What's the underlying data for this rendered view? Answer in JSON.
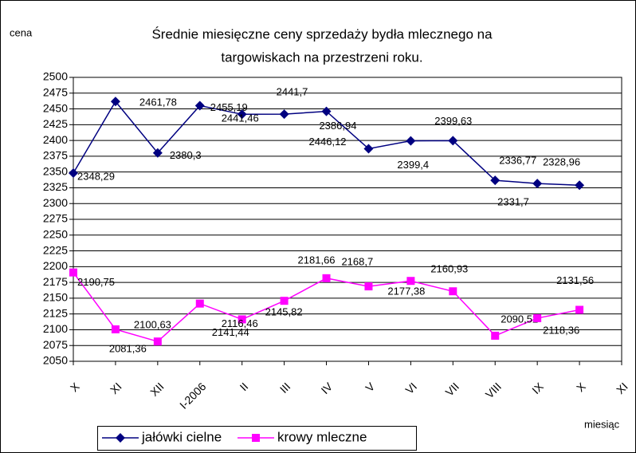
{
  "chart_data": {
    "type": "line",
    "title": [
      "Średnie miesięczne ceny sprzedaży bydła mlecznego na",
      "targowiskach na przestrzeni roku."
    ],
    "y_label": "cena",
    "x_label": "miesiąc",
    "categories": [
      "X",
      "XI",
      "XII",
      "I-2006",
      "II",
      "III",
      "IV",
      "V",
      "VI",
      "VII",
      "VIII",
      "IX",
      "X",
      "XI"
    ],
    "series": [
      {
        "name": "jałówki cielne",
        "color": "#000080",
        "marker": "diamond",
        "values": [
          2348.29,
          2461.78,
          2380.3,
          2455.19,
          2441.46,
          2441.7,
          2446.12,
          2386.94,
          2399.4,
          2399.63,
          2336.77,
          2331.7,
          2328.96,
          null
        ],
        "value_labels": [
          "2348,29",
          "2461,78",
          "2380,3",
          "2455,19",
          "2441,46",
          "2441,7",
          "2446,12",
          "2386,94",
          "2399,4",
          "2399,63",
          "2336,77",
          "2331,7",
          "2328,96",
          null
        ]
      },
      {
        "name": "krowy mleczne",
        "color": "#ff00ff",
        "marker": "square",
        "values": [
          2190.75,
          2100.63,
          2081.36,
          2141.44,
          2116.46,
          2145.82,
          2181.66,
          2168.7,
          2177.38,
          2160.93,
          2090.52,
          2118.36,
          2131.56,
          null
        ],
        "value_labels": [
          "2190,75",
          "2100,63",
          "2081,36",
          "2141,44",
          "2116,46",
          "2145,82",
          "2181,66",
          "2168,7",
          "2177,38",
          "2160,93",
          "2090,52",
          "2118,36",
          "2131,56",
          null
        ]
      }
    ],
    "ylim": [
      2050,
      2500
    ],
    "yticks": [
      2050,
      2075,
      2100,
      2125,
      2150,
      2175,
      2200,
      2225,
      2250,
      2275,
      2300,
      2325,
      2350,
      2375,
      2400,
      2425,
      2450,
      2475,
      2500
    ],
    "grid": true,
    "legend": "bottom"
  }
}
